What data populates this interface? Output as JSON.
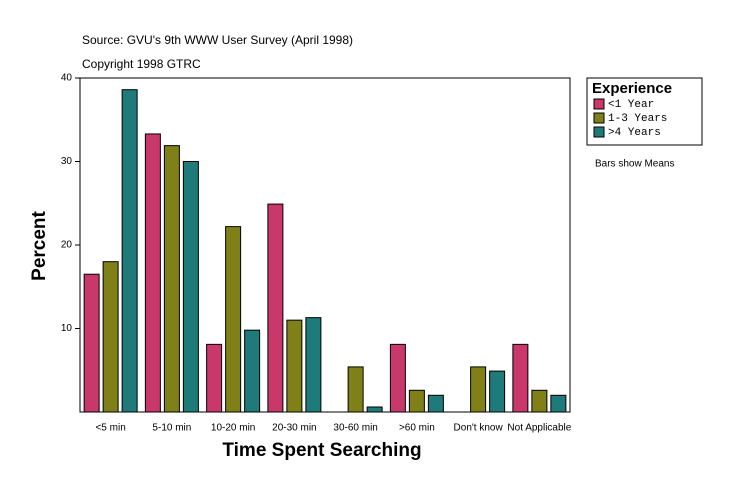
{
  "chart_data": {
    "type": "bar",
    "title": "Source: GVU's 9th WWW User Survey (April 1998)",
    "subtitle": "Copyright 1998 GTRC",
    "x_label": "Time Spent Searching",
    "y_label": "Percent",
    "legend_title": "Experience",
    "annotation": "Bars show Means",
    "categories": [
      "<5 min",
      "5-10 min",
      "10-20 min",
      "20-30 min",
      "30-60 min",
      ">60 min",
      "Don't know",
      "Not Applicable"
    ],
    "series": [
      {
        "name": "<1 Year",
        "color": "#c8386a",
        "values": [
          16.5,
          33.3,
          8.1,
          24.9,
          0,
          8.1,
          0,
          8.1
        ]
      },
      {
        "name": "1-3 Years",
        "color": "#808018",
        "values": [
          18.0,
          31.9,
          22.2,
          11.0,
          5.4,
          2.6,
          5.4,
          2.6
        ]
      },
      {
        "name": ">4 Years",
        "color": "#1f7a7a",
        "values": [
          38.6,
          30.0,
          9.8,
          11.3,
          0.6,
          2.0,
          4.9,
          2.0
        ]
      }
    ],
    "ylim": [
      0,
      40
    ],
    "yticks": [
      10,
      20,
      30,
      40
    ],
    "grid": false
  }
}
